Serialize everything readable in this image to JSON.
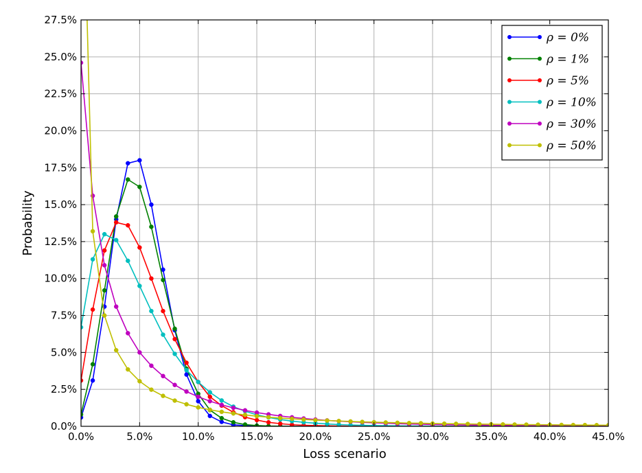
{
  "chart_data": {
    "type": "line",
    "xlabel": "Loss scenario",
    "ylabel": "Probability",
    "xlim": [
      0,
      45
    ],
    "ylim": [
      0,
      27.5
    ],
    "xticks": [
      0,
      5,
      10,
      15,
      20,
      25,
      30,
      35,
      40,
      45
    ],
    "yticks": [
      0,
      2.5,
      5,
      7.5,
      10,
      12.5,
      15,
      17.5,
      20,
      22.5,
      25,
      27.5
    ],
    "xtick_labels": [
      "0.0%",
      "5.0%",
      "10.0%",
      "15.0%",
      "20.0%",
      "25.0%",
      "30.0%",
      "35.0%",
      "40.0%",
      "45.0%"
    ],
    "ytick_labels": [
      "0.0%",
      "2.5%",
      "5.0%",
      "7.5%",
      "10.0%",
      "12.5%",
      "15.0%",
      "17.5%",
      "20.0%",
      "22.5%",
      "25.0%",
      "27.5%"
    ],
    "grid": true,
    "legend_position": "top-right",
    "x": [
      0,
      1,
      2,
      3,
      4,
      5,
      6,
      7,
      8,
      9,
      10,
      11,
      12,
      13,
      14,
      15,
      16,
      17,
      18,
      19,
      20,
      21,
      22,
      23,
      24,
      25,
      26,
      27,
      28,
      29,
      30,
      31,
      32,
      33,
      34,
      35,
      36,
      37,
      38,
      39,
      40,
      41,
      42,
      43,
      44,
      45
    ],
    "series": [
      {
        "name": "ρ = 0%",
        "color": "#0000ff",
        "values": [
          0.6,
          3.1,
          8.1,
          14.0,
          17.8,
          18.0,
          15.0,
          10.6,
          6.5,
          3.5,
          1.7,
          0.7,
          0.3,
          0.1,
          0.05,
          0.02,
          0.01,
          0,
          0,
          0,
          0,
          0,
          0,
          0,
          0,
          0,
          0,
          0,
          0,
          0,
          0,
          0,
          0,
          0,
          0,
          0,
          0,
          0,
          0,
          0,
          0,
          0,
          0,
          0,
          0,
          0
        ]
      },
      {
        "name": "ρ = 1%",
        "color": "#008000",
        "values": [
          0.8,
          4.2,
          9.2,
          14.2,
          16.7,
          16.2,
          13.5,
          9.9,
          6.6,
          3.9,
          2.2,
          1.1,
          0.55,
          0.27,
          0.12,
          0.05,
          0.02,
          0.01,
          0,
          0,
          0,
          0,
          0,
          0,
          0,
          0,
          0,
          0,
          0,
          0,
          0,
          0,
          0,
          0,
          0,
          0,
          0,
          0,
          0,
          0,
          0,
          0,
          0,
          0,
          0,
          0
        ]
      },
      {
        "name": "ρ = 5%",
        "color": "#ff0000",
        "values": [
          3.1,
          7.9,
          11.9,
          13.8,
          13.6,
          12.1,
          10.0,
          7.8,
          5.9,
          4.3,
          3.0,
          2.0,
          1.4,
          0.95,
          0.62,
          0.42,
          0.27,
          0.18,
          0.11,
          0.07,
          0.05,
          0.03,
          0.02,
          0.01,
          0,
          0,
          0,
          0,
          0,
          0,
          0,
          0,
          0,
          0,
          0,
          0,
          0,
          0,
          0,
          0,
          0,
          0,
          0,
          0,
          0,
          0
        ]
      },
      {
        "name": "ρ = 10%",
        "color": "#00bfbf",
        "values": [
          6.7,
          11.3,
          13.0,
          12.6,
          11.2,
          9.5,
          7.8,
          6.2,
          4.9,
          3.8,
          3.0,
          2.3,
          1.75,
          1.33,
          1.02,
          0.78,
          0.6,
          0.46,
          0.35,
          0.27,
          0.21,
          0.16,
          0.12,
          0.09,
          0.07,
          0.05,
          0.04,
          0.03,
          0.02,
          0.02,
          0.01,
          0.01,
          0,
          0,
          0,
          0,
          0,
          0,
          0,
          0,
          0,
          0,
          0,
          0,
          0,
          0
        ]
      },
      {
        "name": "ρ = 30%",
        "color": "#bf00bf",
        "values": [
          24.6,
          15.6,
          10.9,
          8.1,
          6.3,
          5.0,
          4.1,
          3.4,
          2.8,
          2.35,
          2.0,
          1.7,
          1.45,
          1.25,
          1.08,
          0.93,
          0.81,
          0.7,
          0.61,
          0.53,
          0.46,
          0.4,
          0.35,
          0.31,
          0.27,
          0.24,
          0.21,
          0.18,
          0.16,
          0.14,
          0.12,
          0.11,
          0.1,
          0.09,
          0.08,
          0.07,
          0.06,
          0.05,
          0.045,
          0.04,
          0.035,
          0.03,
          0.025,
          0.02,
          0.02,
          0.015
        ]
      },
      {
        "name": "ρ = 50%",
        "color": "#bfbf00",
        "values": [
          43.0,
          13.2,
          7.5,
          5.15,
          3.85,
          3.05,
          2.48,
          2.06,
          1.74,
          1.49,
          1.28,
          1.12,
          0.98,
          0.87,
          0.77,
          0.69,
          0.62,
          0.56,
          0.51,
          0.46,
          0.42,
          0.39,
          0.36,
          0.33,
          0.3,
          0.28,
          0.26,
          0.24,
          0.22,
          0.21,
          0.19,
          0.18,
          0.17,
          0.16,
          0.15,
          0.14,
          0.13,
          0.12,
          0.115,
          0.11,
          0.1,
          0.095,
          0.09,
          0.085,
          0.08,
          0.075
        ]
      }
    ]
  }
}
